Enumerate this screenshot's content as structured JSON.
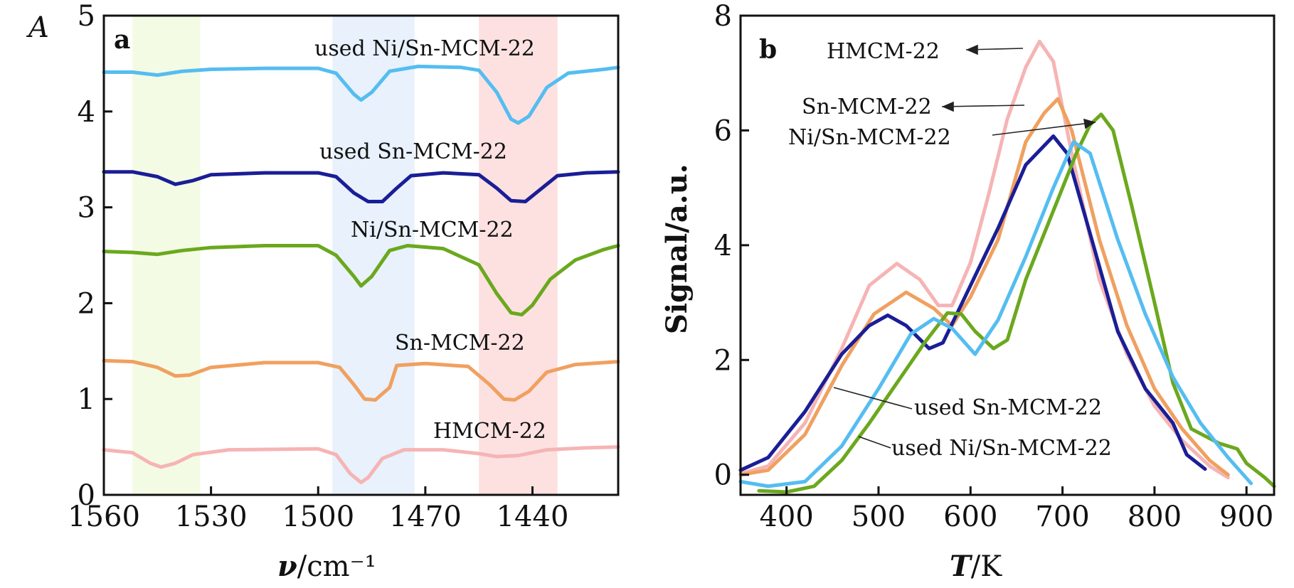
{
  "chart_data": [
    {
      "type": "line",
      "panel_label": "a",
      "ylabel": "A",
      "xlabel_symbol": "ν",
      "xlabel_unit": "/cm⁻¹",
      "xlim": [
        1560,
        1416
      ],
      "ylim": [
        0,
        5
      ],
      "x_ticks": [
        1560,
        1530,
        1500,
        1470,
        1440
      ],
      "y_ticks": [
        0,
        1,
        2,
        3,
        4,
        5
      ],
      "highlight_bands": [
        {
          "from": 1552,
          "to": 1533,
          "color": "#f3fbe4"
        },
        {
          "from": 1496,
          "to": 1473,
          "color": "#e8f1fc"
        },
        {
          "from": 1455,
          "to": 1433,
          "color": "#fde1e1"
        }
      ],
      "series": [
        {
          "name": "used Ni/Sn-MCM-22",
          "color": "#55bdf0",
          "points": [
            [
              1560,
              4.41
            ],
            [
              1552,
              4.41
            ],
            [
              1545,
              4.38
            ],
            [
              1538,
              4.42
            ],
            [
              1530,
              4.44
            ],
            [
              1515,
              4.45
            ],
            [
              1500,
              4.45
            ],
            [
              1495,
              4.4
            ],
            [
              1490,
              4.18
            ],
            [
              1488,
              4.12
            ],
            [
              1485,
              4.2
            ],
            [
              1480,
              4.42
            ],
            [
              1472,
              4.47
            ],
            [
              1460,
              4.46
            ],
            [
              1455,
              4.43
            ],
            [
              1450,
              4.2
            ],
            [
              1446,
              3.92
            ],
            [
              1444,
              3.88
            ],
            [
              1441,
              3.95
            ],
            [
              1436,
              4.25
            ],
            [
              1430,
              4.4
            ],
            [
              1420,
              4.44
            ],
            [
              1416,
              4.46
            ]
          ]
        },
        {
          "name": "used Sn-MCM-22",
          "color": "#1a1e96",
          "points": [
            [
              1560,
              3.37
            ],
            [
              1552,
              3.37
            ],
            [
              1545,
              3.32
            ],
            [
              1540,
              3.24
            ],
            [
              1535,
              3.28
            ],
            [
              1530,
              3.34
            ],
            [
              1515,
              3.36
            ],
            [
              1500,
              3.36
            ],
            [
              1495,
              3.32
            ],
            [
              1490,
              3.15
            ],
            [
              1486,
              3.06
            ],
            [
              1482,
              3.06
            ],
            [
              1478,
              3.2
            ],
            [
              1474,
              3.33
            ],
            [
              1465,
              3.36
            ],
            [
              1455,
              3.34
            ],
            [
              1450,
              3.2
            ],
            [
              1446,
              3.07
            ],
            [
              1442,
              3.06
            ],
            [
              1438,
              3.18
            ],
            [
              1433,
              3.33
            ],
            [
              1425,
              3.36
            ],
            [
              1416,
              3.37
            ]
          ]
        },
        {
          "name": "Ni/Sn-MCM-22",
          "color": "#6ba81e",
          "points": [
            [
              1560,
              2.54
            ],
            [
              1552,
              2.53
            ],
            [
              1545,
              2.51
            ],
            [
              1538,
              2.55
            ],
            [
              1530,
              2.58
            ],
            [
              1515,
              2.6
            ],
            [
              1500,
              2.6
            ],
            [
              1495,
              2.5
            ],
            [
              1490,
              2.28
            ],
            [
              1488,
              2.18
            ],
            [
              1485,
              2.28
            ],
            [
              1480,
              2.55
            ],
            [
              1475,
              2.6
            ],
            [
              1465,
              2.57
            ],
            [
              1455,
              2.4
            ],
            [
              1450,
              2.1
            ],
            [
              1446,
              1.9
            ],
            [
              1443,
              1.88
            ],
            [
              1440,
              1.98
            ],
            [
              1435,
              2.25
            ],
            [
              1428,
              2.45
            ],
            [
              1420,
              2.56
            ],
            [
              1416,
              2.6
            ]
          ]
        },
        {
          "name": "Sn-MCM-22",
          "color": "#f0a060",
          "points": [
            [
              1560,
              1.4
            ],
            [
              1552,
              1.39
            ],
            [
              1545,
              1.33
            ],
            [
              1540,
              1.24
            ],
            [
              1536,
              1.25
            ],
            [
              1530,
              1.33
            ],
            [
              1515,
              1.38
            ],
            [
              1500,
              1.38
            ],
            [
              1494,
              1.33
            ],
            [
              1490,
              1.15
            ],
            [
              1487,
              1.0
            ],
            [
              1484,
              0.99
            ],
            [
              1480,
              1.12
            ],
            [
              1478,
              1.35
            ],
            [
              1470,
              1.37
            ],
            [
              1458,
              1.34
            ],
            [
              1452,
              1.15
            ],
            [
              1448,
              1.0
            ],
            [
              1445,
              0.99
            ],
            [
              1441,
              1.08
            ],
            [
              1436,
              1.28
            ],
            [
              1428,
              1.36
            ],
            [
              1416,
              1.39
            ]
          ]
        },
        {
          "name": "HMCM-22",
          "color": "#f6b4b4",
          "points": [
            [
              1560,
              0.47
            ],
            [
              1552,
              0.44
            ],
            [
              1547,
              0.33
            ],
            [
              1544,
              0.29
            ],
            [
              1540,
              0.33
            ],
            [
              1535,
              0.42
            ],
            [
              1525,
              0.47
            ],
            [
              1500,
              0.48
            ],
            [
              1495,
              0.42
            ],
            [
              1491,
              0.22
            ],
            [
              1488,
              0.13
            ],
            [
              1486,
              0.18
            ],
            [
              1482,
              0.38
            ],
            [
              1476,
              0.47
            ],
            [
              1465,
              0.47
            ],
            [
              1455,
              0.43
            ],
            [
              1450,
              0.4
            ],
            [
              1444,
              0.41
            ],
            [
              1436,
              0.47
            ],
            [
              1425,
              0.49
            ],
            [
              1416,
              0.5
            ]
          ]
        }
      ],
      "annotations": [
        "used Ni/Sn-MCM-22",
        "used Sn-MCM-22",
        "Ni/Sn-MCM-22",
        "Sn-MCM-22",
        "HMCM-22"
      ]
    },
    {
      "type": "line",
      "panel_label": "b",
      "ylabel": "Signal/a.u.",
      "xlabel_symbol": "T",
      "xlabel_unit": "/K",
      "xlim": [
        350,
        930
      ],
      "ylim": [
        -0.35,
        8
      ],
      "x_ticks": [
        400,
        500,
        600,
        700,
        800,
        900
      ],
      "y_ticks": [
        0,
        2,
        4,
        6,
        8
      ],
      "series": [
        {
          "name": "HMCM-22",
          "color": "#f6b4b4",
          "points": [
            [
              350,
              0.02
            ],
            [
              380,
              0.15
            ],
            [
              420,
              0.9
            ],
            [
              460,
              2.2
            ],
            [
              490,
              3.3
            ],
            [
              520,
              3.68
            ],
            [
              545,
              3.4
            ],
            [
              565,
              2.95
            ],
            [
              580,
              2.95
            ],
            [
              600,
              3.7
            ],
            [
              620,
              4.9
            ],
            [
              640,
              6.2
            ],
            [
              660,
              7.1
            ],
            [
              675,
              7.55
            ],
            [
              690,
              7.2
            ],
            [
              710,
              5.6
            ],
            [
              740,
              3.4
            ],
            [
              770,
              2.1
            ],
            [
              800,
              1.2
            ],
            [
              830,
              0.6
            ],
            [
              860,
              0.15
            ],
            [
              880,
              -0.05
            ]
          ]
        },
        {
          "name": "Sn-MCM-22",
          "color": "#f0a060",
          "points": [
            [
              350,
              0.0
            ],
            [
              380,
              0.08
            ],
            [
              420,
              0.7
            ],
            [
              460,
              1.9
            ],
            [
              495,
              2.8
            ],
            [
              530,
              3.18
            ],
            [
              560,
              2.9
            ],
            [
              580,
              2.6
            ],
            [
              600,
              3.1
            ],
            [
              630,
              4.1
            ],
            [
              660,
              5.8
            ],
            [
              680,
              6.3
            ],
            [
              695,
              6.55
            ],
            [
              710,
              6.0
            ],
            [
              740,
              4.1
            ],
            [
              770,
              2.6
            ],
            [
              800,
              1.5
            ],
            [
              830,
              0.8
            ],
            [
              860,
              0.25
            ],
            [
              880,
              0.0
            ]
          ]
        },
        {
          "name": "used Sn-MCM-22",
          "color": "#1a1e96",
          "points": [
            [
              350,
              0.08
            ],
            [
              380,
              0.3
            ],
            [
              420,
              1.1
            ],
            [
              460,
              2.1
            ],
            [
              490,
              2.6
            ],
            [
              510,
              2.78
            ],
            [
              530,
              2.6
            ],
            [
              555,
              2.2
            ],
            [
              570,
              2.3
            ],
            [
              600,
              3.3
            ],
            [
              630,
              4.3
            ],
            [
              660,
              5.4
            ],
            [
              690,
              5.9
            ],
            [
              705,
              5.6
            ],
            [
              730,
              4.2
            ],
            [
              760,
              2.5
            ],
            [
              790,
              1.5
            ],
            [
              820,
              0.9
            ],
            [
              835,
              0.35
            ],
            [
              855,
              0.1
            ]
          ]
        },
        {
          "name": "Ni/Sn-MCM-22",
          "color": "#6ba81e",
          "points": [
            [
              370,
              -0.28
            ],
            [
              400,
              -0.3
            ],
            [
              430,
              -0.2
            ],
            [
              460,
              0.25
            ],
            [
              490,
              0.9
            ],
            [
              520,
              1.6
            ],
            [
              550,
              2.3
            ],
            [
              575,
              2.82
            ],
            [
              590,
              2.8
            ],
            [
              605,
              2.5
            ],
            [
              625,
              2.2
            ],
            [
              640,
              2.35
            ],
            [
              660,
              3.4
            ],
            [
              690,
              4.6
            ],
            [
              715,
              5.6
            ],
            [
              730,
              6.1
            ],
            [
              742,
              6.28
            ],
            [
              755,
              6.0
            ],
            [
              775,
              4.7
            ],
            [
              800,
              3.0
            ],
            [
              820,
              1.6
            ],
            [
              840,
              0.8
            ],
            [
              870,
              0.55
            ],
            [
              890,
              0.45
            ],
            [
              900,
              0.2
            ],
            [
              920,
              -0.05
            ],
            [
              930,
              -0.2
            ]
          ]
        },
        {
          "name": "used Ni/Sn-MCM-22",
          "color": "#55bdf0",
          "points": [
            [
              350,
              -0.12
            ],
            [
              380,
              -0.2
            ],
            [
              420,
              -0.12
            ],
            [
              460,
              0.5
            ],
            [
              500,
              1.5
            ],
            [
              535,
              2.45
            ],
            [
              560,
              2.72
            ],
            [
              580,
              2.55
            ],
            [
              605,
              2.1
            ],
            [
              630,
              2.7
            ],
            [
              660,
              3.8
            ],
            [
              690,
              5.0
            ],
            [
              712,
              5.8
            ],
            [
              730,
              5.6
            ],
            [
              760,
              4.1
            ],
            [
              790,
              2.8
            ],
            [
              820,
              1.7
            ],
            [
              850,
              0.9
            ],
            [
              880,
              0.3
            ],
            [
              905,
              -0.15
            ]
          ]
        }
      ],
      "annotations": [
        "HMCM-22",
        "Sn-MCM-22",
        "Ni/Sn-MCM-22",
        "used Sn-MCM-22",
        "used Ni/Sn-MCM-22"
      ]
    }
  ]
}
